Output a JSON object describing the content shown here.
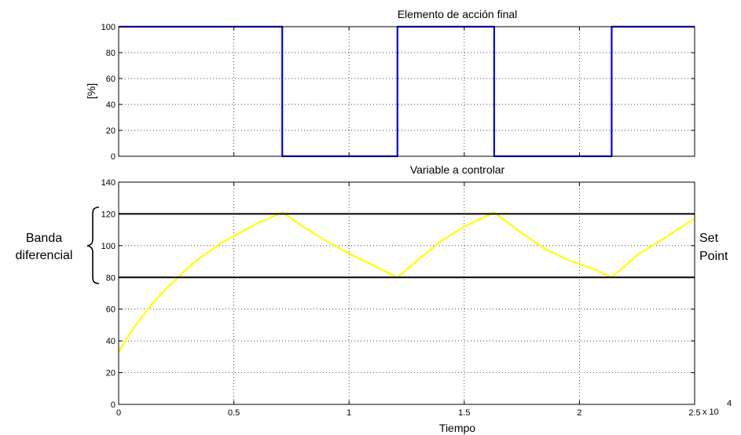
{
  "chart_data": [
    {
      "type": "line",
      "title": "Elemento de acción final",
      "xlabel": "",
      "ylabel": "[%]",
      "xlim": [
        0,
        25000
      ],
      "ylim": [
        0,
        100
      ],
      "grid": true,
      "x_ticks": [
        0,
        5000,
        10000,
        15000,
        20000,
        25000
      ],
      "y_ticks": [
        0,
        20,
        40,
        60,
        80,
        100
      ],
      "y_tick_labels": [
        "0",
        "20",
        "40",
        "60",
        "80",
        "100"
      ],
      "series": [
        {
          "color": "#0000ff",
          "x": [
            0,
            7100,
            7100,
            12100,
            12100,
            16300,
            16300,
            21400,
            21400,
            25000
          ],
          "y": [
            100,
            100,
            0,
            0,
            100,
            100,
            0,
            0,
            100,
            100
          ]
        }
      ]
    },
    {
      "type": "line",
      "title": "Variable a controlar",
      "xlabel": "Tiempo",
      "ylabel": "",
      "xlim": [
        0,
        25000
      ],
      "ylim": [
        0,
        140
      ],
      "grid": true,
      "x_ticks": [
        0,
        5000,
        10000,
        15000,
        20000,
        25000
      ],
      "x_tick_labels": [
        "0",
        "0.5",
        "1",
        "1.5",
        "2",
        "2.5"
      ],
      "x_exponent": {
        "base": "x 10",
        "power": "4"
      },
      "y_ticks": [
        0,
        20,
        40,
        60,
        80,
        100,
        120,
        140
      ],
      "y_tick_labels": [
        "0",
        "20",
        "40",
        "60",
        "80",
        "100",
        "120",
        "140"
      ],
      "series": [
        {
          "color": "#ffff00",
          "x": [
            0,
            500,
            1000,
            1500,
            2000,
            2500,
            3000,
            3500,
            4000,
            4500,
            5000,
            5500,
            6000,
            6500,
            7100,
            8000,
            9000,
            10000,
            11000,
            12100,
            13000,
            14000,
            15000,
            16300,
            17500,
            18500,
            19500,
            20500,
            21400,
            22500,
            23500,
            25000
          ],
          "y": [
            33,
            45,
            55,
            64,
            72,
            79,
            86,
            92,
            97,
            102,
            106,
            110,
            114,
            117,
            121,
            112,
            103,
            95,
            88,
            80,
            91,
            103,
            112,
            121,
            108,
            98,
            91,
            86,
            80,
            94,
            103,
            117
          ]
        },
        {
          "color": "#000000",
          "x": [
            0,
            25000
          ],
          "y": [
            120,
            120
          ]
        },
        {
          "color": "#000000",
          "x": [
            0,
            25000
          ],
          "y": [
            80,
            80
          ]
        }
      ],
      "annotations": {
        "band_label": [
          "Banda",
          "diferencial"
        ],
        "setpoint_label": [
          "Set",
          "Point"
        ]
      }
    }
  ]
}
